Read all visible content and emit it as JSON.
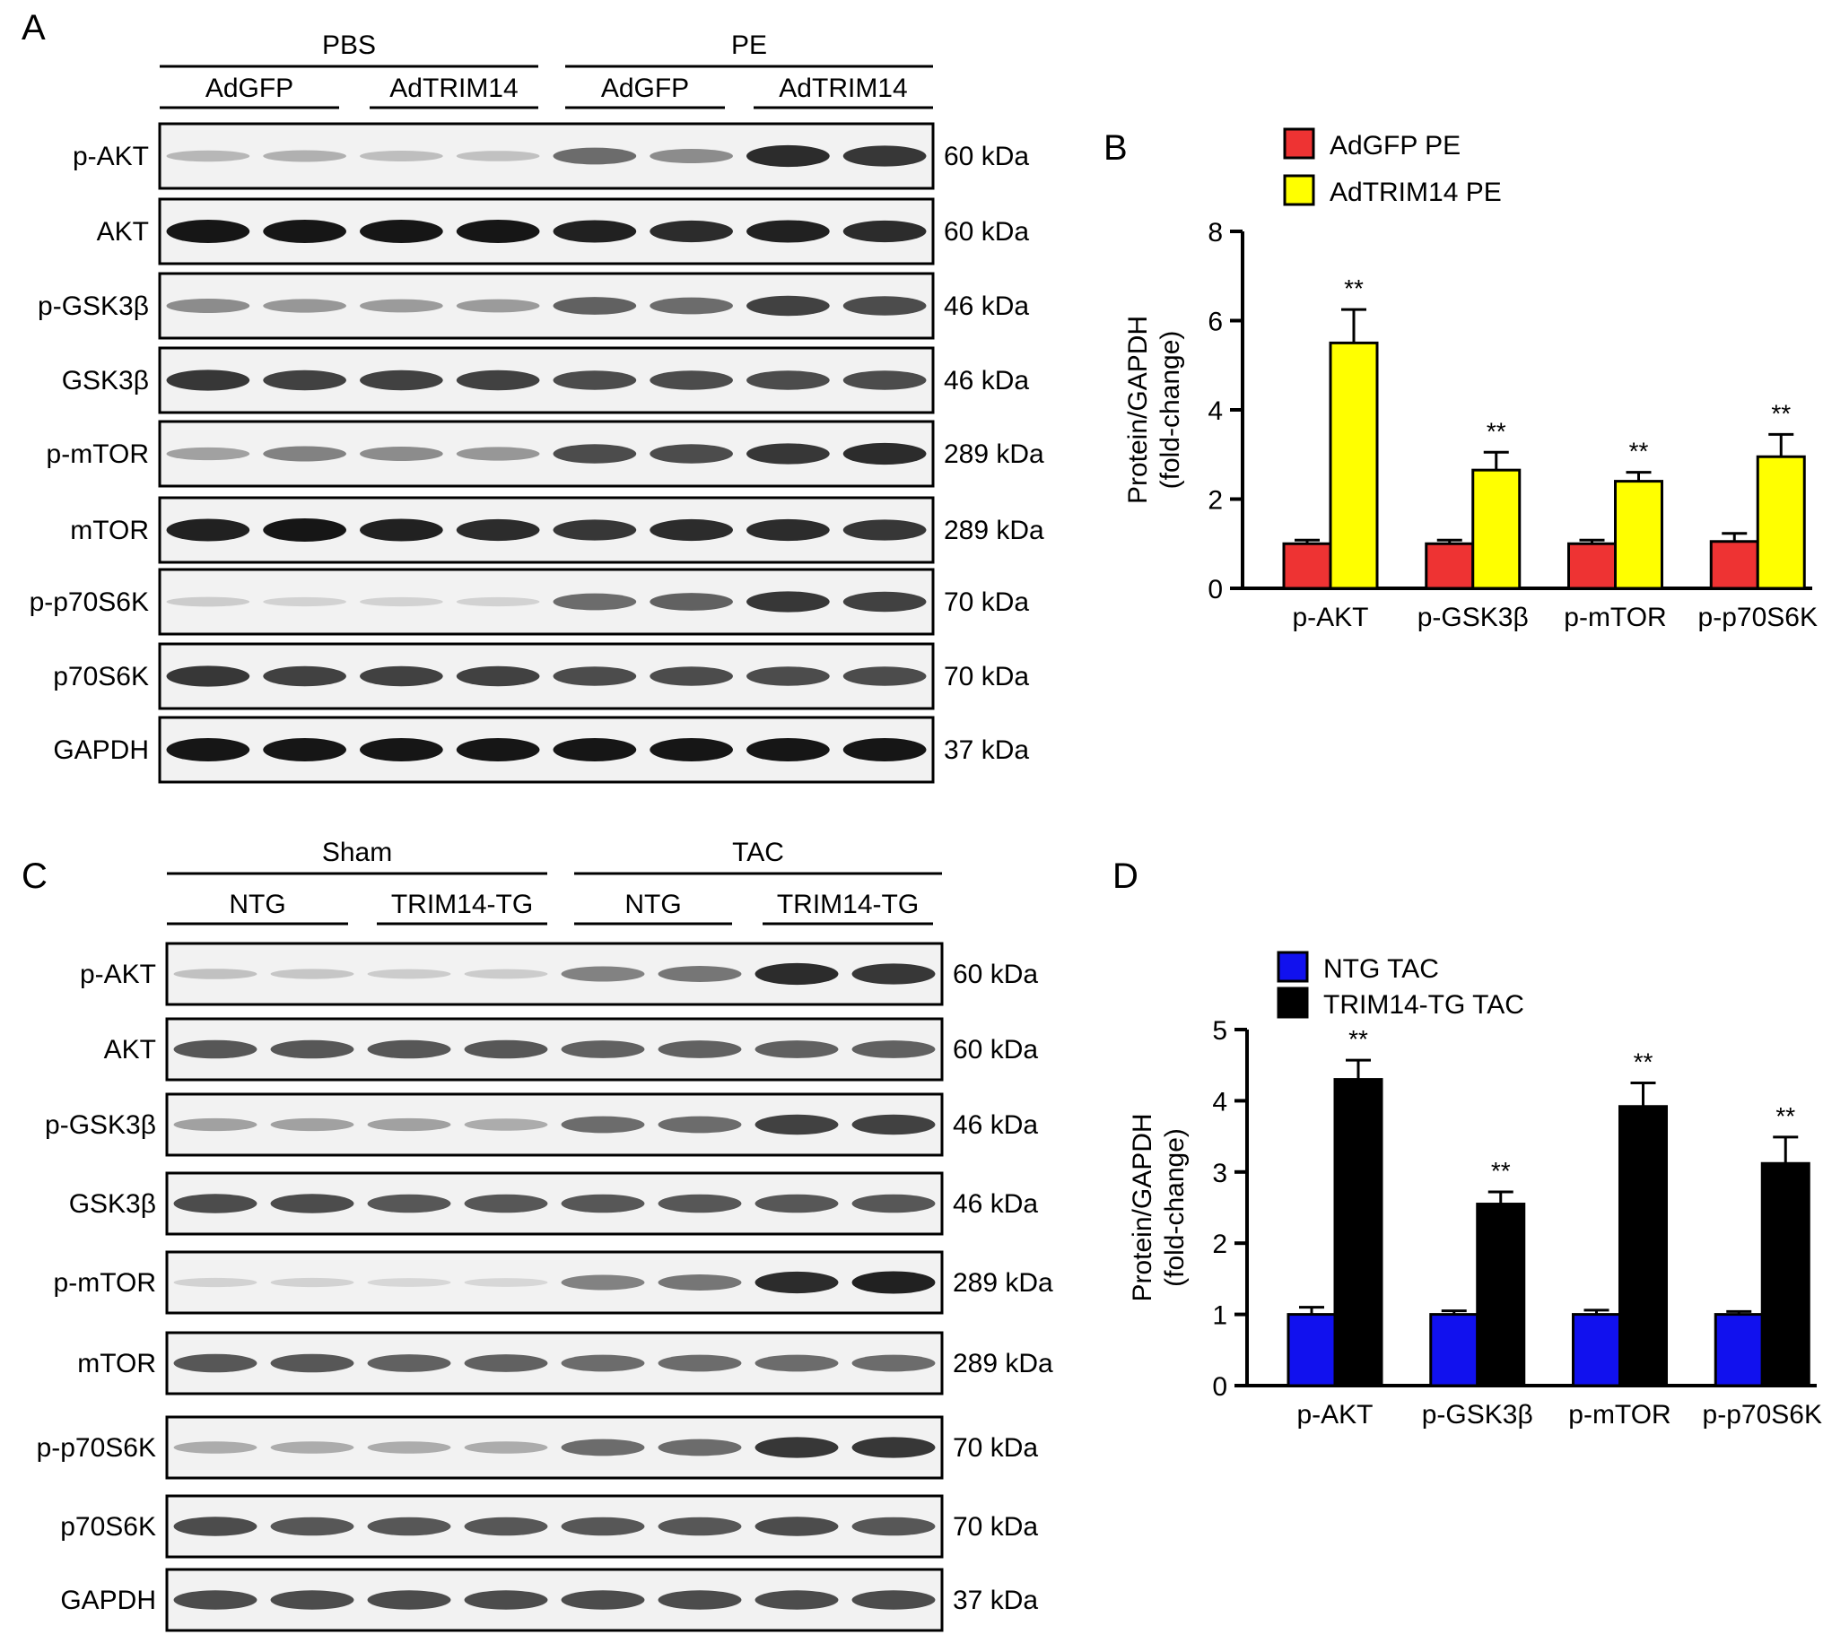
{
  "panels": {
    "A": {
      "letter": "A",
      "conditions": [
        "PBS",
        "PE"
      ],
      "groups": [
        "AdGFP",
        "AdTRIM14",
        "AdGFP",
        "AdTRIM14"
      ],
      "blots": [
        {
          "label": "p-AKT",
          "kda": "60 kDa",
          "intensity": [
            0.25,
            0.28,
            0.22,
            0.2,
            0.6,
            0.45,
            0.9,
            0.85
          ]
        },
        {
          "label": "AKT",
          "kda": "60 kDa",
          "intensity": [
            1,
            1,
            1,
            1,
            0.95,
            0.9,
            0.95,
            0.9
          ]
        },
        {
          "label": "p-GSK3β",
          "kda": "46 kDa",
          "intensity": [
            0.45,
            0.4,
            0.38,
            0.38,
            0.65,
            0.6,
            0.8,
            0.75
          ]
        },
        {
          "label": "GSK3β",
          "kda": "46 kDa",
          "intensity": [
            0.85,
            0.8,
            0.8,
            0.8,
            0.75,
            0.75,
            0.75,
            0.75
          ]
        },
        {
          "label": "p-mTOR",
          "kda": "289 kDa",
          "intensity": [
            0.35,
            0.5,
            0.45,
            0.4,
            0.75,
            0.75,
            0.85,
            0.9
          ]
        },
        {
          "label": "mTOR",
          "kda": "289 kDa",
          "intensity": [
            0.95,
            1,
            0.95,
            0.9,
            0.85,
            0.9,
            0.9,
            0.85
          ]
        },
        {
          "label": "p-p70S6K",
          "kda": "70 kDa",
          "intensity": [
            0.15,
            0.12,
            0.12,
            0.12,
            0.6,
            0.65,
            0.85,
            0.8
          ]
        },
        {
          "label": "p70S6K",
          "kda": "70 kDa",
          "intensity": [
            0.85,
            0.8,
            0.8,
            0.8,
            0.75,
            0.75,
            0.75,
            0.75
          ]
        },
        {
          "label": "GAPDH",
          "kda": "37 kDa",
          "intensity": [
            1,
            1,
            1,
            1,
            1,
            1,
            1,
            1
          ]
        }
      ]
    },
    "B": {
      "letter": "B"
    },
    "C": {
      "letter": "C",
      "conditions": [
        "Sham",
        "TAC"
      ],
      "groups": [
        "NTG",
        "TRIM14-TG",
        "NTG",
        "TRIM14-TG"
      ],
      "blots": [
        {
          "label": "p-AKT",
          "kda": "60 kDa",
          "intensity": [
            0.2,
            0.18,
            0.15,
            0.15,
            0.5,
            0.55,
            0.9,
            0.85
          ]
        },
        {
          "label": "AKT",
          "kda": "60 kDa",
          "intensity": [
            0.7,
            0.7,
            0.7,
            0.7,
            0.65,
            0.65,
            0.65,
            0.65
          ]
        },
        {
          "label": "p-GSK3β",
          "kda": "46 kDa",
          "intensity": [
            0.35,
            0.35,
            0.35,
            0.3,
            0.6,
            0.6,
            0.8,
            0.8
          ]
        },
        {
          "label": "GSK3β",
          "kda": "46 kDa",
          "intensity": [
            0.75,
            0.75,
            0.7,
            0.7,
            0.7,
            0.7,
            0.7,
            0.7
          ]
        },
        {
          "label": "p-mTOR",
          "kda": "289 kDa",
          "intensity": [
            0.12,
            0.12,
            0.1,
            0.1,
            0.5,
            0.55,
            0.9,
            0.95
          ]
        },
        {
          "label": "mTOR",
          "kda": "289 kDa",
          "intensity": [
            0.7,
            0.7,
            0.65,
            0.65,
            0.6,
            0.6,
            0.6,
            0.6
          ]
        },
        {
          "label": "p-p70S6K",
          "kda": "70 kDa",
          "intensity": [
            0.3,
            0.3,
            0.3,
            0.3,
            0.6,
            0.6,
            0.85,
            0.85
          ]
        },
        {
          "label": "p70S6K",
          "kda": "70 kDa",
          "intensity": [
            0.75,
            0.7,
            0.7,
            0.7,
            0.7,
            0.7,
            0.75,
            0.7
          ]
        },
        {
          "label": "GAPDH",
          "kda": "37 kDa",
          "intensity": [
            0.75,
            0.75,
            0.75,
            0.75,
            0.75,
            0.75,
            0.75,
            0.75
          ]
        }
      ]
    },
    "D": {
      "letter": "D"
    }
  },
  "chart_data": [
    {
      "panel": "B",
      "type": "bar",
      "categories": [
        "p-AKT",
        "p-GSK3β",
        "p-mTOR",
        "p-p70S6K"
      ],
      "series": [
        {
          "name": "AdGFP PE",
          "color": "#ee3333",
          "values": [
            1.0,
            1.0,
            1.0,
            1.05
          ],
          "errors": [
            0.08,
            0.08,
            0.08,
            0.18
          ]
        },
        {
          "name": "AdTRIM14 PE",
          "color": "#ffff00",
          "values": [
            5.5,
            2.65,
            2.4,
            2.95
          ],
          "errors": [
            0.75,
            0.4,
            0.2,
            0.5
          ]
        }
      ],
      "significance": [
        "**",
        "**",
        "**",
        "**"
      ],
      "ylabel": [
        "Protein/GAPDH",
        "(fold-change)"
      ],
      "ylim": [
        0,
        8
      ],
      "yticks": [
        0,
        2,
        4,
        6,
        8
      ],
      "legend": "top"
    },
    {
      "panel": "D",
      "type": "bar",
      "categories": [
        "p-AKT",
        "p-GSK3β",
        "p-mTOR",
        "p-p70S6K"
      ],
      "series": [
        {
          "name": "NTG TAC",
          "color": "#1111ee",
          "values": [
            1.0,
            1.0,
            1.0,
            1.0
          ],
          "errors": [
            0.1,
            0.05,
            0.06,
            0.04
          ]
        },
        {
          "name": "TRIM14-TG TAC",
          "color": "#000000",
          "values": [
            4.3,
            2.55,
            3.92,
            3.12
          ],
          "errors": [
            0.27,
            0.17,
            0.33,
            0.37
          ]
        }
      ],
      "significance": [
        "**",
        "**",
        "**",
        "**"
      ],
      "ylabel": [
        "Protein/GAPDH",
        "(fold-change)"
      ],
      "ylim": [
        0,
        5
      ],
      "yticks": [
        0,
        1,
        2,
        3,
        4,
        5
      ],
      "legend": "top"
    }
  ]
}
